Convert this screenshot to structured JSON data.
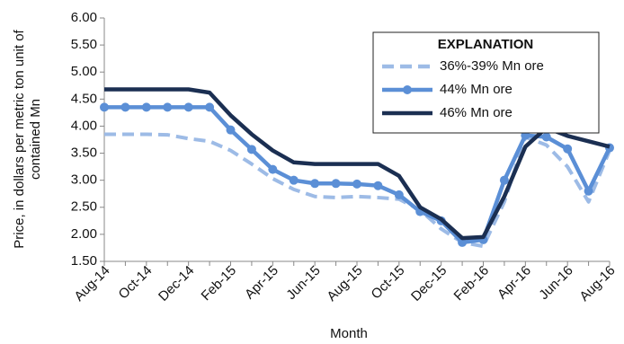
{
  "chart_data": {
    "type": "line",
    "ylabel": [
      "Price, in dollars per metric ton unit of",
      "contained Mn"
    ],
    "xlabel": "Month",
    "categories": [
      "Aug-14",
      null,
      "Oct-14",
      null,
      "Dec-14",
      null,
      "Feb-15",
      null,
      "Apr-15",
      null,
      "Jun-15",
      null,
      "Aug-15",
      null,
      "Oct-15",
      null,
      "Dec-15",
      null,
      "Feb-16",
      null,
      "Apr-16",
      null,
      "Jun-16",
      null,
      "Aug-16"
    ],
    "series": [
      {
        "name": "36%-39% Mn ore",
        "color": "#9dbbe6",
        "dash": true,
        "markers": false,
        "values": [
          3.85,
          3.85,
          3.85,
          3.84,
          3.77,
          3.72,
          3.55,
          3.3,
          3.03,
          2.83,
          2.7,
          2.68,
          2.7,
          2.68,
          2.65,
          2.45,
          2.1,
          1.85,
          1.78,
          2.6,
          3.8,
          3.65,
          3.25,
          2.6,
          3.55
        ]
      },
      {
        "name": "44% Mn ore",
        "color": "#5b8fd6",
        "dash": false,
        "markers": true,
        "values": [
          4.35,
          4.35,
          4.35,
          4.35,
          4.35,
          4.35,
          3.93,
          3.57,
          3.2,
          3.0,
          2.94,
          2.94,
          2.93,
          2.9,
          2.73,
          2.42,
          2.25,
          1.85,
          1.9,
          3.0,
          3.83,
          3.8,
          3.58,
          2.8,
          3.6
        ]
      },
      {
        "name": "46% Mn ore",
        "color": "#1b2f52",
        "dash": false,
        "markers": false,
        "values": [
          4.68,
          4.68,
          4.68,
          4.68,
          4.68,
          4.62,
          4.2,
          3.85,
          3.55,
          3.33,
          3.3,
          3.3,
          3.3,
          3.3,
          3.08,
          2.5,
          2.28,
          1.93,
          1.95,
          2.7,
          3.62,
          3.97,
          3.82,
          3.72,
          3.62
        ]
      }
    ],
    "ylim": [
      1.5,
      6.0
    ],
    "yticks": [
      {
        "value": 1.5,
        "label": "1.50"
      },
      {
        "value": 2.0,
        "label": "2.00"
      },
      {
        "value": 2.5,
        "label": "2.50"
      },
      {
        "value": 3.0,
        "label": "3.00"
      },
      {
        "value": 3.5,
        "label": "3.50"
      },
      {
        "value": 4.0,
        "label": "4.00"
      },
      {
        "value": 4.5,
        "label": "4.50"
      },
      {
        "value": 5.0,
        "label": "5.00"
      },
      {
        "value": 5.5,
        "label": "5.50"
      },
      {
        "value": 6.0,
        "label": "6.00"
      }
    ],
    "grid": false,
    "legend": {
      "title": "EXPLANATION",
      "position": "upper right"
    }
  }
}
